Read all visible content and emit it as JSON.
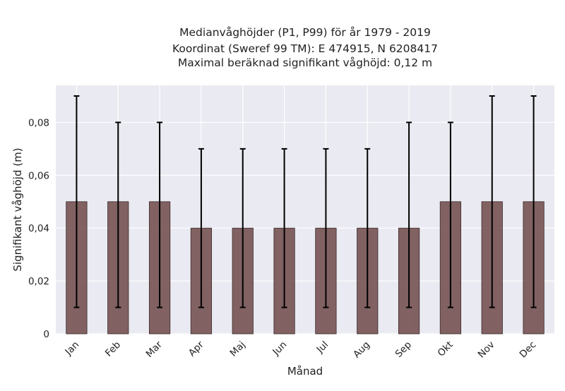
{
  "chart_data": {
    "type": "bar",
    "title_lines": [
      "Medianvåghöjder (P1, P99) för år 1979 - 2019",
      "Koordinat (Sweref 99 TM): E 474915, N 6208417",
      "Maximal beräknad signifikant våghöjd: 0,12 m"
    ],
    "xlabel": "Månad",
    "ylabel": "Signifikant våghöjd (m)",
    "categories": [
      "Jan",
      "Feb",
      "Mar",
      "Apr",
      "Maj",
      "Jun",
      "Jul",
      "Aug",
      "Sep",
      "Okt",
      "Nov",
      "Dec"
    ],
    "values": [
      0.05,
      0.05,
      0.05,
      0.04,
      0.04,
      0.04,
      0.04,
      0.04,
      0.04,
      0.05,
      0.05,
      0.05
    ],
    "error_low": [
      0.01,
      0.01,
      0.01,
      0.01,
      0.01,
      0.01,
      0.01,
      0.01,
      0.01,
      0.01,
      0.01,
      0.01
    ],
    "error_high": [
      0.09,
      0.08,
      0.08,
      0.07,
      0.07,
      0.07,
      0.07,
      0.07,
      0.08,
      0.08,
      0.09,
      0.09
    ],
    "ylim": [
      0,
      0.094
    ],
    "yticks": [
      0,
      0.02,
      0.04,
      0.06,
      0.08
    ],
    "ytick_labels": [
      "0",
      "0,02",
      "0,04",
      "0,06",
      "0,08"
    ],
    "grid": true,
    "colors": {
      "bar": "#7b5a5a",
      "bar_edge": "#3a2a2a",
      "error": "#000000",
      "plot_bg": "#eaeaf2",
      "grid": "#ffffff"
    }
  }
}
